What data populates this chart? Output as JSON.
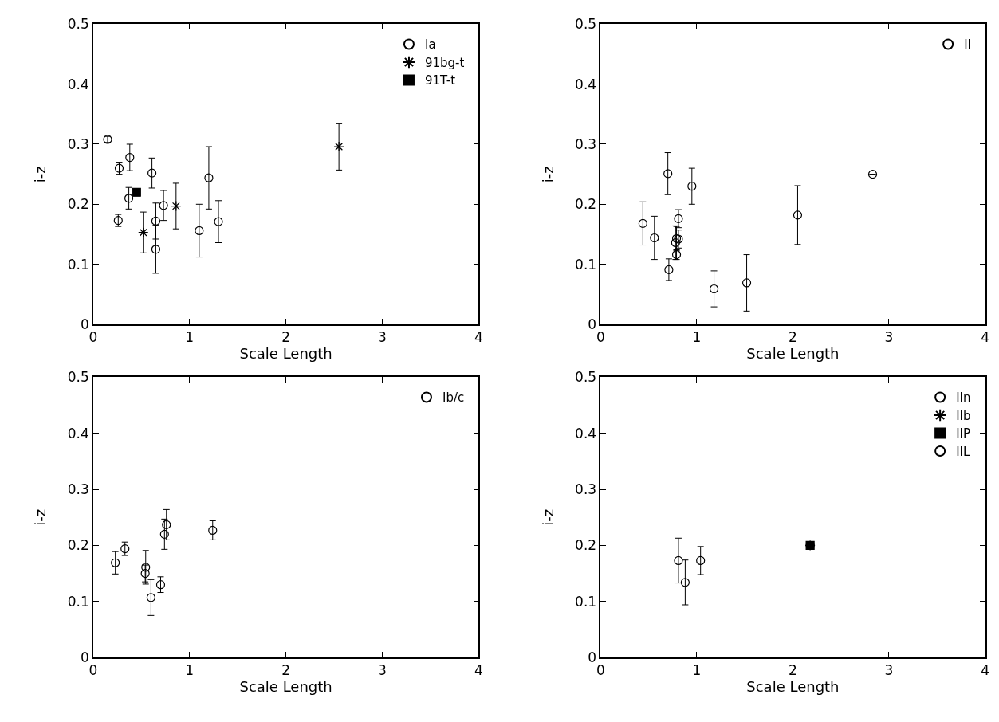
{
  "chart_data": [
    {
      "type": "scatter",
      "xlabel": "Scale Length",
      "ylabel": "i-z",
      "xlim": [
        0,
        4
      ],
      "ylim": [
        0,
        0.5
      ],
      "xticks": [
        0,
        1,
        2,
        3,
        4
      ],
      "yticks": [
        0,
        0.1,
        0.2,
        0.3,
        0.4,
        0.5
      ],
      "legend": "top right",
      "series": [
        {
          "name": "Ia",
          "color": "#000000",
          "marker": "circle",
          "x": [
            0.15,
            0.27,
            0.38,
            0.26,
            0.37,
            0.61,
            0.73,
            0.65,
            0.65,
            1.1,
            1.2,
            1.3
          ],
          "values": [
            0.308,
            0.26,
            0.278,
            0.173,
            0.21,
            0.252,
            0.198,
            0.172,
            0.125,
            0.156,
            0.244,
            0.171
          ],
          "errors": [
            0.005,
            0.01,
            0.022,
            0.01,
            0.018,
            0.025,
            0.025,
            0.03,
            0.04,
            0.044,
            0.052,
            0.035
          ]
        },
        {
          "name": "91bg-t",
          "color": "#000000",
          "marker": "cross",
          "x": [
            0.52,
            0.86,
            2.55
          ],
          "values": [
            0.153,
            0.197,
            0.296
          ],
          "errors": [
            0.034,
            0.038,
            0.039
          ]
        },
        {
          "name": "91T-t",
          "color": "#000000",
          "marker": "square",
          "x": [
            0.45
          ],
          "values": [
            0.22
          ],
          "errors": [
            0.006
          ]
        }
      ]
    },
    {
      "type": "scatter",
      "xlabel": "Scale Length",
      "ylabel": "i-z",
      "xlim": [
        0,
        4
      ],
      "ylim": [
        0,
        0.5
      ],
      "xticks": [
        0,
        1,
        2,
        3,
        4
      ],
      "yticks": [
        0,
        0.1,
        0.2,
        0.3,
        0.4,
        0.5
      ],
      "legend": "top right",
      "series": [
        {
          "name": "II",
          "color": "#000000",
          "marker": "circle",
          "x": [
            0.44,
            0.56,
            0.7,
            0.71,
            0.95,
            0.81,
            0.78,
            0.79,
            0.81,
            0.79,
            1.18,
            1.52,
            2.05,
            2.83
          ],
          "values": [
            0.168,
            0.144,
            0.251,
            0.091,
            0.23,
            0.176,
            0.136,
            0.143,
            0.142,
            0.116,
            0.059,
            0.069,
            0.182,
            0.25
          ],
          "errors": [
            0.036,
            0.036,
            0.035,
            0.018,
            0.03,
            0.015,
            0.028,
            0.02,
            0.015,
            0.008,
            0.03,
            0.047,
            0.049,
            null
          ]
        }
      ]
    },
    {
      "type": "scatter",
      "xlabel": "Scale Length",
      "ylabel": "i-z",
      "xlim": [
        0,
        4
      ],
      "ylim": [
        0,
        0.5
      ],
      "xticks": [
        0,
        1,
        2,
        3,
        4
      ],
      "yticks": [
        0,
        0.1,
        0.2,
        0.3,
        0.4,
        0.5
      ],
      "legend": "top right",
      "series": [
        {
          "name": "Ib/c",
          "color": "#000000",
          "marker": "circle",
          "x": [
            0.23,
            0.33,
            0.545,
            0.54,
            0.6,
            0.7,
            0.74,
            0.76,
            1.24
          ],
          "values": [
            0.169,
            0.194,
            0.161,
            0.15,
            0.107,
            0.13,
            0.22,
            0.237,
            0.227
          ],
          "errors": [
            0.02,
            0.012,
            0.03,
            0.015,
            0.032,
            0.014,
            0.027,
            0.027,
            0.017
          ]
        }
      ]
    },
    {
      "type": "scatter",
      "xlabel": "Scale Length",
      "ylabel": "i-z",
      "xlim": [
        0,
        4
      ],
      "ylim": [
        0,
        0.5
      ],
      "xticks": [
        0,
        1,
        2,
        3,
        4
      ],
      "yticks": [
        0,
        0.1,
        0.2,
        0.3,
        0.4,
        0.5
      ],
      "legend": "top right",
      "series": [
        {
          "name": "IIn",
          "color": "#000000",
          "marker": "circle",
          "x": [
            0.81,
            0.88,
            1.04
          ],
          "values": [
            0.173,
            0.134,
            0.173
          ],
          "errors": [
            0.04,
            0.04,
            0.025
          ]
        },
        {
          "name": "IIb",
          "color": "#000000",
          "marker": "cross",
          "x": [
            2.18
          ],
          "values": [
            0.2
          ]
        },
        {
          "name": "IIP",
          "color": "#000000",
          "marker": "square",
          "x": [
            2.18
          ],
          "values": [
            0.2
          ]
        },
        {
          "name": "IIL",
          "color": "#000000",
          "marker": "circle",
          "x": [
            2.18
          ],
          "values": [
            0.2
          ]
        }
      ]
    }
  ]
}
